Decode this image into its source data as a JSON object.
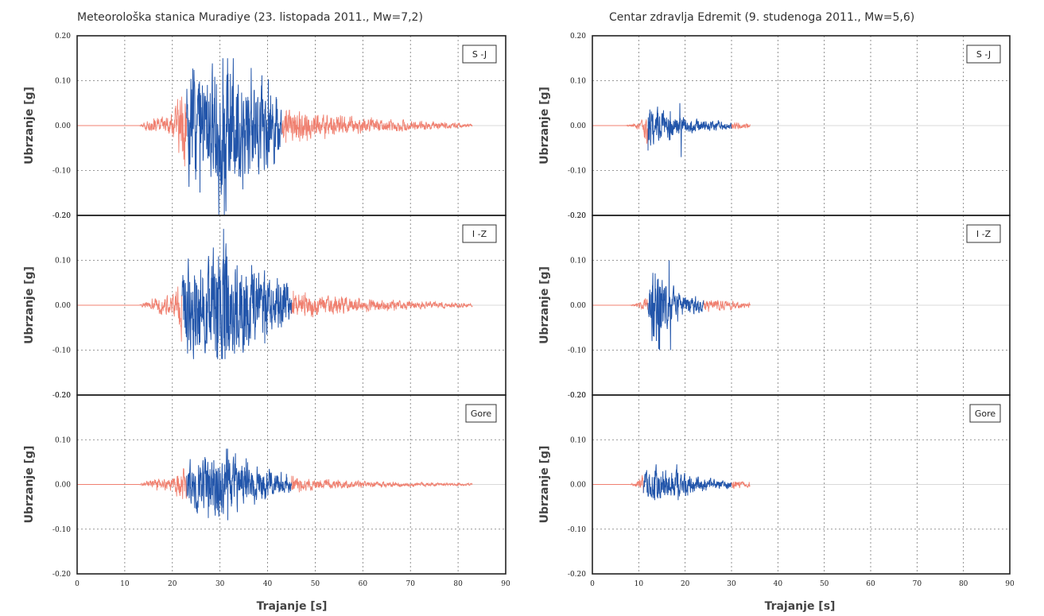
{
  "figure": {
    "stations": [
      {
        "title": "Meteorološka stanica Muradiye (23. listopada 2011., Mw=7,2)",
        "xlabel": "Trajanje [s]",
        "panels": [
          {
            "component": "S -J",
            "ylabel": "Ubrzanje [g]"
          },
          {
            "component": "I -Z",
            "ylabel": "Ubrzanje [g]"
          },
          {
            "component": "Gore",
            "ylabel": "Ubrzanje [g]"
          }
        ]
      },
      {
        "title": "Centar zdravlja Edremit (9. studenoga 2011., Mw=5,6)",
        "xlabel": "Trajanje [s]",
        "panels": [
          {
            "component": "S -J",
            "ylabel": "Ubrzanje [g]"
          },
          {
            "component": "I -Z",
            "ylabel": "Ubrzanje [g]"
          },
          {
            "component": "Gore",
            "ylabel": "Ubrzanje [g]"
          }
        ]
      }
    ]
  },
  "chart_data": [
    {
      "type": "line",
      "title": "Meteorološka stanica Muradiye (23. listopada 2011., Mw=7,2)",
      "subtitle": "S -J",
      "xlabel": "Trajanje [s]",
      "ylabel": "Ubrzanje [g]",
      "xlim": [
        0,
        90
      ],
      "ylim": [
        -0.2,
        0.2
      ],
      "xticks": [
        "0",
        "10",
        "20",
        "30",
        "40",
        "50",
        "60",
        "70",
        "80",
        "90"
      ],
      "yticks": [
        "0.20",
        "0.10",
        "0.00",
        "-0.10",
        "-0.20"
      ],
      "grid": true,
      "colors": {
        "weak": "#f08070",
        "strong": "#2255aa"
      },
      "record": {
        "start": 0,
        "end": 83,
        "onset": 15,
        "strong_start": 23,
        "strong_end": 43
      },
      "peaks": {
        "max": 0.15,
        "min": -0.2
      },
      "envelope": {
        "t": [
          15,
          20,
          23,
          25,
          28,
          30,
          33,
          38,
          42,
          43,
          50,
          60,
          70,
          83
        ],
        "amp": [
          0.01,
          0.02,
          0.1,
          0.12,
          0.1,
          0.16,
          0.12,
          0.09,
          0.07,
          0.03,
          0.025,
          0.015,
          0.01,
          0.003
        ]
      }
    },
    {
      "type": "line",
      "title": "Meteorološka stanica Muradiye (23. listopada 2011., Mw=7,2)",
      "subtitle": "I -Z",
      "xlabel": "Trajanje [s]",
      "ylabel": "Ubrzanje [g]",
      "xlim": [
        0,
        90
      ],
      "ylim": [
        -0.2,
        0.2
      ],
      "xticks": [
        "0",
        "10",
        "20",
        "30",
        "40",
        "50",
        "60",
        "70",
        "80",
        "90"
      ],
      "yticks": [
        "0.20",
        "0.10",
        "0.00",
        "-0.10",
        "-0.20"
      ],
      "grid": true,
      "colors": {
        "weak": "#f08070",
        "strong": "#2255aa"
      },
      "record": {
        "start": 0,
        "end": 83,
        "onset": 15,
        "strong_start": 22,
        "strong_end": 45
      },
      "peaks": {
        "max": 0.17,
        "min": -0.12
      },
      "envelope": {
        "t": [
          15,
          20,
          22,
          25,
          28,
          30,
          33,
          38,
          44,
          45,
          50,
          60,
          70,
          83
        ],
        "amp": [
          0.01,
          0.02,
          0.08,
          0.1,
          0.09,
          0.15,
          0.11,
          0.07,
          0.05,
          0.025,
          0.02,
          0.012,
          0.008,
          0.003
        ]
      }
    },
    {
      "type": "line",
      "title": "Meteorološka stanica Muradiye (23. listopada 2011., Mw=7,2)",
      "subtitle": "Gore",
      "xlabel": "Trajanje [s]",
      "ylabel": "Ubrzanje [g]",
      "xlim": [
        0,
        90
      ],
      "ylim": [
        -0.2,
        0.2
      ],
      "xticks": [
        "0",
        "10",
        "20",
        "30",
        "40",
        "50",
        "60",
        "70",
        "80",
        "90"
      ],
      "yticks": [
        "0.20",
        "0.10",
        "0.00",
        "-0.10",
        "-0.20"
      ],
      "grid": true,
      "colors": {
        "weak": "#f08070",
        "strong": "#2255aa"
      },
      "record": {
        "start": 0,
        "end": 83,
        "onset": 15,
        "strong_start": 23,
        "strong_end": 45
      },
      "peaks": {
        "max": 0.08,
        "min": -0.08
      },
      "envelope": {
        "t": [
          15,
          20,
          23,
          26,
          30,
          34,
          40,
          45,
          50,
          60,
          70,
          83
        ],
        "amp": [
          0.008,
          0.015,
          0.04,
          0.05,
          0.07,
          0.05,
          0.03,
          0.015,
          0.01,
          0.006,
          0.004,
          0.002
        ]
      }
    },
    {
      "type": "line",
      "title": "Centar zdravlja Edremit (9. studenoga 2011., Mw=5,6)",
      "subtitle": "S -J",
      "xlabel": "Trajanje [s]",
      "ylabel": "Ubrzanje [g]",
      "xlim": [
        0,
        90
      ],
      "ylim": [
        -0.2,
        0.2
      ],
      "xticks": [
        "0",
        "10",
        "20",
        "30",
        "40",
        "50",
        "60",
        "70",
        "80",
        "90"
      ],
      "yticks": [
        "0.20",
        "0.10",
        "0.00",
        "-0.10",
        "-0.20"
      ],
      "grid": true,
      "colors": {
        "weak": "#f08070",
        "strong": "#2255aa"
      },
      "record": {
        "start": 0,
        "end": 34,
        "onset": 9,
        "strong_start": 12,
        "strong_end": 30
      },
      "peaks": {
        "max": 0.05,
        "min": -0.07
      },
      "envelope": {
        "t": [
          9,
          11,
          12,
          13,
          15,
          20,
          25,
          30,
          34
        ],
        "amp": [
          0.004,
          0.01,
          0.06,
          0.04,
          0.03,
          0.015,
          0.01,
          0.008,
          0.004
        ]
      }
    },
    {
      "type": "line",
      "title": "Centar zdravlja Edremit (9. studenoga 2011., Mw=5,6)",
      "subtitle": "I -Z",
      "xlabel": "Trajanje [s]",
      "ylabel": "Ubrzanje [g]",
      "xlim": [
        0,
        90
      ],
      "ylim": [
        -0.2,
        0.2
      ],
      "xticks": [
        "0",
        "10",
        "20",
        "30",
        "40",
        "50",
        "60",
        "70",
        "80",
        "90"
      ],
      "yticks": [
        "0.20",
        "0.10",
        "0.00",
        "-0.10",
        "-0.20"
      ],
      "grid": true,
      "colors": {
        "weak": "#f08070",
        "strong": "#2255aa"
      },
      "record": {
        "start": 0,
        "end": 34,
        "onset": 10,
        "strong_start": 12,
        "strong_end": 24
      },
      "peaks": {
        "max": 0.1,
        "min": -0.1
      },
      "envelope": {
        "t": [
          10,
          12,
          13,
          14,
          16,
          20,
          24,
          30,
          34
        ],
        "amp": [
          0.005,
          0.015,
          0.09,
          0.1,
          0.04,
          0.02,
          0.012,
          0.008,
          0.004
        ]
      }
    },
    {
      "type": "line",
      "title": "Centar zdravlja Edremit (9. studenoga 2011., Mw=5,6)",
      "subtitle": "Gore",
      "xlabel": "Trajanje [s]",
      "ylabel": "Ubrzanje [g]",
      "xlim": [
        0,
        90
      ],
      "ylim": [
        -0.2,
        0.2
      ],
      "xticks": [
        "0",
        "10",
        "20",
        "30",
        "40",
        "50",
        "60",
        "70",
        "80",
        "90"
      ],
      "yticks": [
        "0.20",
        "0.10",
        "0.00",
        "-0.10",
        "-0.20"
      ],
      "grid": true,
      "colors": {
        "weak": "#f08070",
        "strong": "#2255aa"
      },
      "record": {
        "start": 0,
        "end": 34,
        "onset": 10,
        "strong_start": 11,
        "strong_end": 30
      },
      "peaks": {
        "max": 0.045,
        "min": -0.035
      },
      "envelope": {
        "t": [
          10,
          11,
          13,
          15,
          20,
          25,
          30,
          34
        ],
        "amp": [
          0.008,
          0.02,
          0.04,
          0.03,
          0.02,
          0.012,
          0.008,
          0.004
        ]
      }
    }
  ]
}
